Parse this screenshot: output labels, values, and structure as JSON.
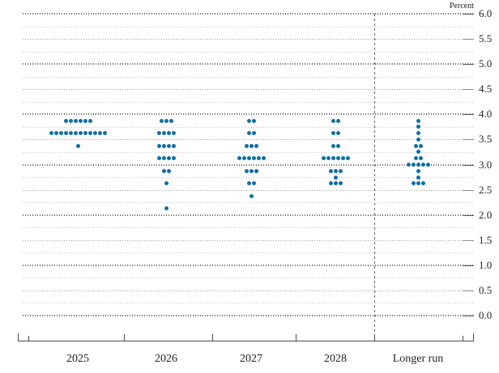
{
  "chart_data": {
    "type": "scatter",
    "variant": "fomc-dot-plot",
    "unit_label": "Percent",
    "y_axis": {
      "min": 0.0,
      "max": 6.0,
      "label_step": 0.5,
      "grid_step": 0.25,
      "tick_labels": [
        "6.0",
        "5.5",
        "5.0",
        "4.5",
        "4.0",
        "3.5",
        "3.0",
        "2.5",
        "2.0",
        "1.5",
        "1.0",
        "0.5",
        "0.0"
      ]
    },
    "categories": [
      "2025",
      "2026",
      "2027",
      "2028",
      "Longer run"
    ],
    "series": [
      {
        "category": "2025",
        "dots": [
          {
            "rate": 3.875,
            "count": 6
          },
          {
            "rate": 3.625,
            "count": 12
          },
          {
            "rate": 3.375,
            "count": 1
          }
        ]
      },
      {
        "category": "2026",
        "dots": [
          {
            "rate": 3.875,
            "count": 3
          },
          {
            "rate": 3.625,
            "count": 4
          },
          {
            "rate": 3.375,
            "count": 4
          },
          {
            "rate": 3.125,
            "count": 4
          },
          {
            "rate": 2.875,
            "count": 2
          },
          {
            "rate": 2.625,
            "count": 1
          },
          {
            "rate": 2.125,
            "count": 1
          }
        ]
      },
      {
        "category": "2027",
        "dots": [
          {
            "rate": 3.875,
            "count": 2
          },
          {
            "rate": 3.625,
            "count": 2
          },
          {
            "rate": 3.375,
            "count": 3
          },
          {
            "rate": 3.125,
            "count": 6
          },
          {
            "rate": 2.875,
            "count": 3
          },
          {
            "rate": 2.625,
            "count": 2
          },
          {
            "rate": 2.375,
            "count": 1
          }
        ]
      },
      {
        "category": "2028",
        "dots": [
          {
            "rate": 3.875,
            "count": 2
          },
          {
            "rate": 3.625,
            "count": 2
          },
          {
            "rate": 3.375,
            "count": 2
          },
          {
            "rate": 3.125,
            "count": 6
          },
          {
            "rate": 2.875,
            "count": 3
          },
          {
            "rate": 2.75,
            "count": 1
          },
          {
            "rate": 2.625,
            "count": 3
          }
        ]
      },
      {
        "category": "Longer run",
        "dots": [
          {
            "rate": 3.875,
            "count": 1
          },
          {
            "rate": 3.75,
            "count": 1
          },
          {
            "rate": 3.625,
            "count": 1
          },
          {
            "rate": 3.5,
            "count": 1
          },
          {
            "rate": 3.375,
            "count": 2
          },
          {
            "rate": 3.25,
            "count": 1
          },
          {
            "rate": 3.125,
            "count": 2
          },
          {
            "rate": 3.0,
            "count": 5
          },
          {
            "rate": 2.875,
            "count": 1
          },
          {
            "rate": 2.75,
            "count": 1
          },
          {
            "rate": 2.625,
            "count": 3
          }
        ]
      }
    ],
    "colors": {
      "dot": "#0f6fa3",
      "grid_quarter": "#c6c6c6",
      "grid_half": "#9c9c9c",
      "grid_integer": "#6a6a6a",
      "axis": "#4a4a4a",
      "separator": "#666666",
      "text": "#222222"
    },
    "legend_position": "none",
    "grid": true
  }
}
